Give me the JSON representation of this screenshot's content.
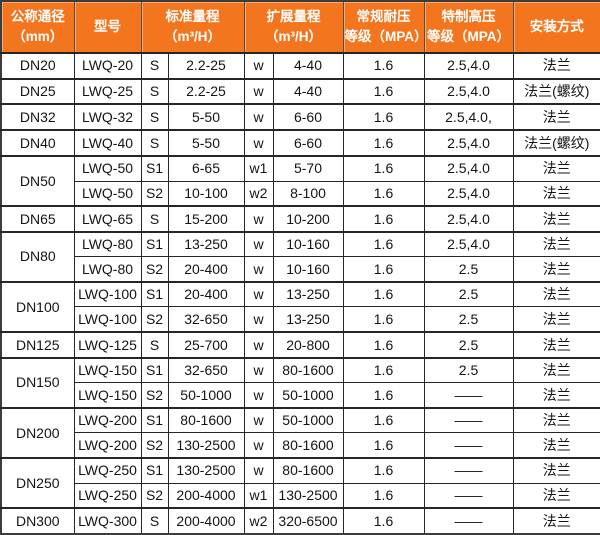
{
  "colors": {
    "header_bg": "#F3761E",
    "header_text": "#FFFFFF",
    "body_border": "#262626",
    "body_text": "#141414"
  },
  "chart_data": {
    "type": "table",
    "title": "",
    "headers": [
      {
        "line1": "公称通径",
        "line2": "（mm）"
      },
      {
        "line1": "型号",
        "line2": ""
      },
      {
        "line1": "标准量程",
        "line2": "（m³/H）"
      },
      {
        "line1": "扩展量程",
        "line2": "（m³/H）"
      },
      {
        "line1": "常规耐压",
        "line2": "等级（MPA）"
      },
      {
        "line1": "特制高压",
        "line2": "等级（MPA）"
      },
      {
        "line1": "安装方式",
        "line2": ""
      }
    ],
    "rows": [
      {
        "dn": "DN20",
        "dn_rowspan": 1,
        "model": "LWQ-20",
        "std_code": "S",
        "std_range": "2.2-25",
        "ext_code": "w",
        "ext_range": "4-40",
        "pressure": "1.6",
        "high_pressure": "2.5,4.0",
        "install": "法兰"
      },
      {
        "dn": "DN25",
        "dn_rowspan": 1,
        "model": "LWQ-25",
        "std_code": "S",
        "std_range": "2.2-25",
        "ext_code": "w",
        "ext_range": "4-40",
        "pressure": "1.6",
        "high_pressure": "2.5,4.0",
        "install": "法兰(螺纹)"
      },
      {
        "dn": "DN32",
        "dn_rowspan": 1,
        "model": "LWQ-32",
        "std_code": "S",
        "std_range": "5-50",
        "ext_code": "w",
        "ext_range": "6-60",
        "pressure": "1.6",
        "high_pressure": "2.5,4.0,",
        "install": "法兰"
      },
      {
        "dn": "DN40",
        "dn_rowspan": 1,
        "model": "LWQ-40",
        "std_code": "S",
        "std_range": "5-50",
        "ext_code": "w",
        "ext_range": "6-60",
        "pressure": "1.6",
        "high_pressure": "2.5,4.0",
        "install": "法兰(螺纹)"
      },
      {
        "dn": "DN50",
        "dn_rowspan": 2,
        "model": "LWQ-50",
        "std_code": "S1",
        "std_range": "6-65",
        "ext_code": "w1",
        "ext_range": "5-70",
        "pressure": "1.6",
        "high_pressure": "2.5,4.0",
        "install": "法兰"
      },
      {
        "dn": null,
        "dn_rowspan": 0,
        "model": "LWQ-50",
        "std_code": "S2",
        "std_range": "10-100",
        "ext_code": "w2",
        "ext_range": "8-100",
        "pressure": "1.6",
        "high_pressure": "2.5,4.0",
        "install": "法兰"
      },
      {
        "dn": "DN65",
        "dn_rowspan": 1,
        "model": "LWQ-65",
        "std_code": "S",
        "std_range": "15-200",
        "ext_code": "w",
        "ext_range": "10-200",
        "pressure": "1.6",
        "high_pressure": "2.5,4.0",
        "install": "法兰"
      },
      {
        "dn": "DN80",
        "dn_rowspan": 2,
        "model": "LWQ-80",
        "std_code": "S1",
        "std_range": "13-250",
        "ext_code": "w",
        "ext_range": "10-160",
        "pressure": "1.6",
        "high_pressure": "2.5,4.0",
        "install": "法兰"
      },
      {
        "dn": null,
        "dn_rowspan": 0,
        "model": "LWQ-80",
        "std_code": "S2",
        "std_range": "20-400",
        "ext_code": "w",
        "ext_range": "10-160",
        "pressure": "1.6",
        "high_pressure": "2.5",
        "install": "法兰"
      },
      {
        "dn": "DN100",
        "dn_rowspan": 2,
        "model": "LWQ-100",
        "std_code": "S1",
        "std_range": "20-400",
        "ext_code": "w",
        "ext_range": "13-250",
        "pressure": "1.6",
        "high_pressure": "2.5",
        "install": "法兰"
      },
      {
        "dn": null,
        "dn_rowspan": 0,
        "model": "LWQ-100",
        "std_code": "S2",
        "std_range": "32-650",
        "ext_code": "w",
        "ext_range": "13-250",
        "pressure": "1.6",
        "high_pressure": "2.5",
        "install": "法兰"
      },
      {
        "dn": "DN125",
        "dn_rowspan": 1,
        "model": "LWQ-125",
        "std_code": "S",
        "std_range": "25-700",
        "ext_code": "w",
        "ext_range": "20-800",
        "pressure": "1.6",
        "high_pressure": "2.5",
        "install": "法兰"
      },
      {
        "dn": "DN150",
        "dn_rowspan": 2,
        "model": "LWQ-150",
        "std_code": "S1",
        "std_range": "32-650",
        "ext_code": "w",
        "ext_range": "80-1600",
        "pressure": "1.6",
        "high_pressure": "2.5",
        "install": "法兰"
      },
      {
        "dn": null,
        "dn_rowspan": 0,
        "model": "LWQ-150",
        "std_code": "S2",
        "std_range": "50-1000",
        "ext_code": "w",
        "ext_range": "50-1000",
        "pressure": "1.6",
        "high_pressure": "——",
        "install": "法兰"
      },
      {
        "dn": "DN200",
        "dn_rowspan": 2,
        "model": "LWQ-200",
        "std_code": "S1",
        "std_range": "80-1600",
        "ext_code": "w",
        "ext_range": "50-1000",
        "pressure": "1.6",
        "high_pressure": "——",
        "install": "法兰"
      },
      {
        "dn": null,
        "dn_rowspan": 0,
        "model": "LWQ-200",
        "std_code": "S2",
        "std_range": "130-2500",
        "ext_code": "w",
        "ext_range": "80-1600",
        "pressure": "1.6",
        "high_pressure": "——",
        "install": "法兰"
      },
      {
        "dn": "DN250",
        "dn_rowspan": 2,
        "model": "LWQ-250",
        "std_code": "S1",
        "std_range": "130-2500",
        "ext_code": "w",
        "ext_range": "80-1600",
        "pressure": "1.6",
        "high_pressure": "——",
        "install": "法兰"
      },
      {
        "dn": null,
        "dn_rowspan": 0,
        "model": "LWQ-250",
        "std_code": "S2",
        "std_range": "200-4000",
        "ext_code": "w1",
        "ext_range": "130-2500",
        "pressure": "1.6",
        "high_pressure": "——",
        "install": "法兰"
      },
      {
        "dn": "DN300",
        "dn_rowspan": 1,
        "model": "LWQ-300",
        "std_code": "S",
        "std_range": "200-4000",
        "ext_code": "w2",
        "ext_range": "320-6500",
        "pressure": "1.6",
        "high_pressure": "——",
        "install": "法兰"
      }
    ]
  }
}
